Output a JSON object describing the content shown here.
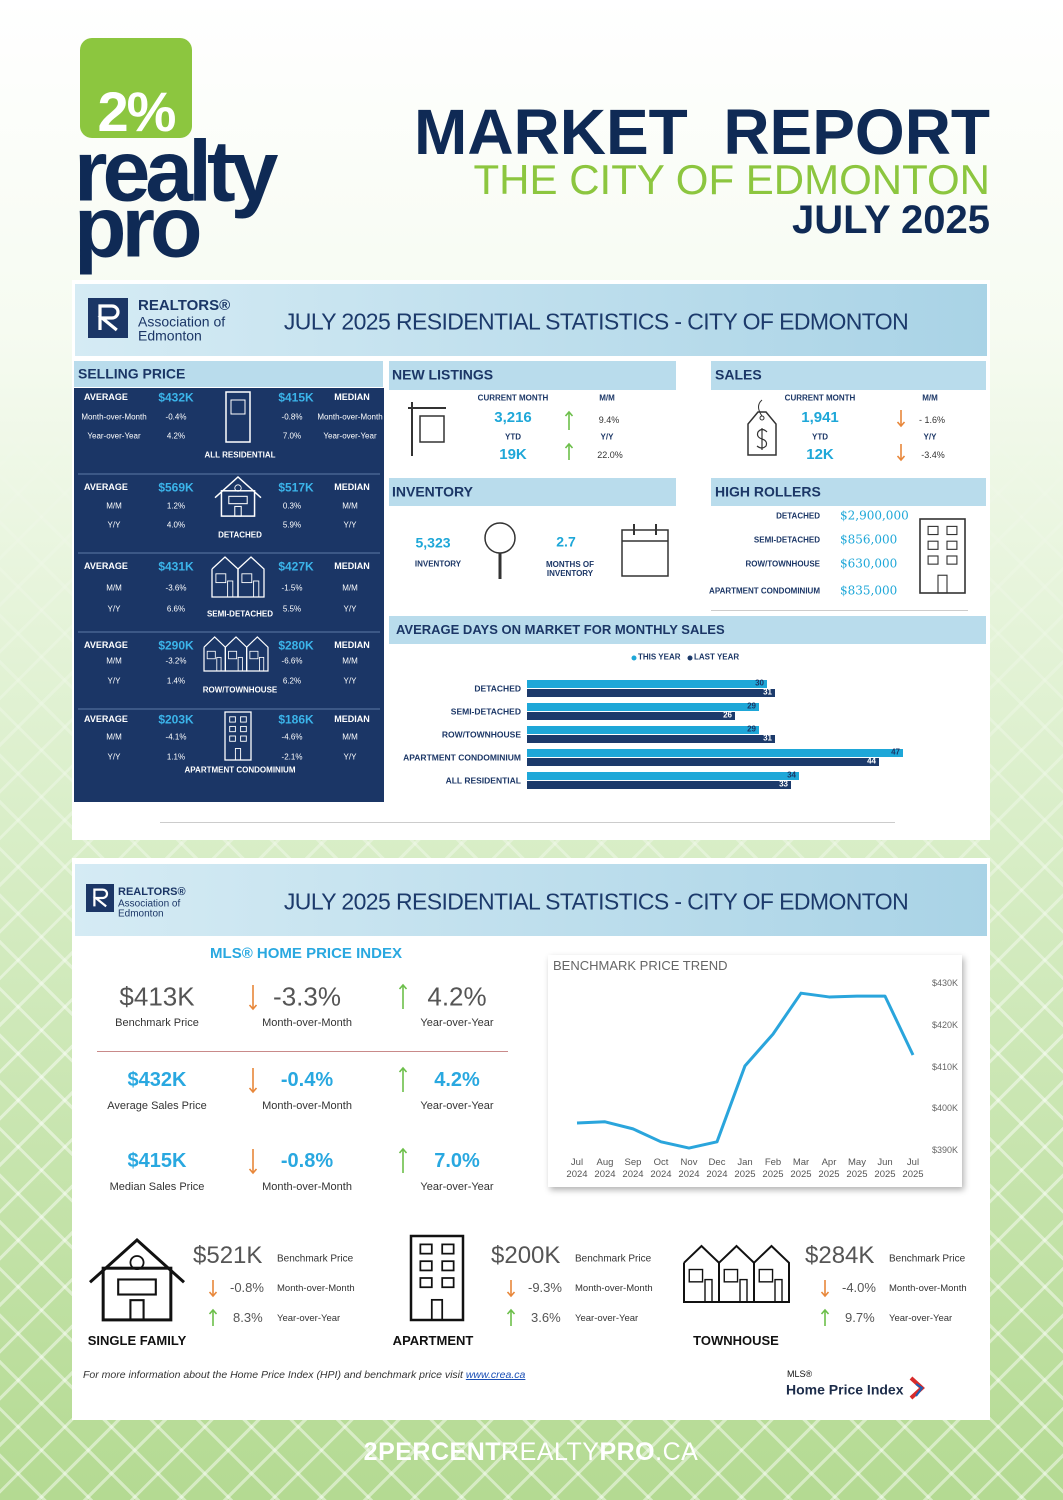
{
  "header": {
    "logo_pct": "2%",
    "logo_word1": "realty",
    "logo_word2": "pro",
    "title": "MARKET  REPORT",
    "subtitle": "THE CITY OF EDMONTON",
    "date": "JULY 2025"
  },
  "panel1": {
    "realtors": [
      "REALTORS®",
      "Association of",
      "Edmonton"
    ],
    "banner_title": "JULY 2025 RESIDENTIAL STATISTICS - CITY OF EDMONTON"
  },
  "selling_price": {
    "title": "SELLING PRICE",
    "groups": [
      {
        "average_label": "AVERAGE",
        "average": "$432K",
        "median": "$415K",
        "median_label": "MEDIAN",
        "rows": [
          {
            "left": "Month-over-Month",
            "average": "-0.4%",
            "median": "-0.8%",
            "right": "Month-over-Month"
          },
          {
            "left": "Year-over-Year",
            "average": "4.2%",
            "median": "7.0%",
            "right": "Year-over-Year"
          }
        ],
        "name": "ALL RESIDENTIAL"
      },
      {
        "average_label": "AVERAGE",
        "average": "$569K",
        "median": "$517K",
        "median_label": "MEDIAN",
        "rows": [
          {
            "left": "M/M",
            "average": "1.2%",
            "median": "0.3%",
            "right": "M/M"
          },
          {
            "left": "Y/Y",
            "average": "4.0%",
            "median": "5.9%",
            "right": "Y/Y"
          }
        ],
        "name": "DETACHED"
      },
      {
        "average_label": "AVERAGE",
        "average": "$431K",
        "median": "$427K",
        "median_label": "MEDIAN",
        "rows": [
          {
            "left": "M/M",
            "average": "-3.6%",
            "median": "-1.5%",
            "right": "M/M"
          },
          {
            "left": "Y/Y",
            "average": "6.6%",
            "median": "5.5%",
            "right": "Y/Y"
          }
        ],
        "name": "SEMI-DETACHED"
      },
      {
        "average_label": "AVERAGE",
        "average": "$290K",
        "median": "$280K",
        "median_label": "MEDIAN",
        "rows": [
          {
            "left": "M/M",
            "average": "-3.2%",
            "median": "-6.6%",
            "right": "M/M"
          },
          {
            "left": "Y/Y",
            "average": "1.4%",
            "median": "6.2%",
            "right": "Y/Y"
          }
        ],
        "name": "ROW/TOWNHOUSE"
      },
      {
        "average_label": "AVERAGE",
        "average": "$203K",
        "median": "$186K",
        "median_label": "MEDIAN",
        "rows": [
          {
            "left": "M/M",
            "average": "-4.1%",
            "median": "-4.6%",
            "right": "M/M"
          },
          {
            "left": "Y/Y",
            "average": "1.1%",
            "median": "-2.1%",
            "right": "Y/Y"
          }
        ],
        "name": "APARTMENT CONDOMINIUM"
      }
    ]
  },
  "new_listings": {
    "title": "NEW  LISTINGS",
    "current_label": "CURRENT MONTH",
    "mm_label": "M/M",
    "current": "3,216",
    "mm": "9.4%",
    "ytd_label": "YTD",
    "yy_label": "Y/Y",
    "ytd": "19K",
    "yy": "22.0%"
  },
  "sales": {
    "title": "SALES",
    "current_label": "CURRENT MONTH",
    "mm_label": "M/M",
    "current": "1,941",
    "mm": "- 1.6%",
    "ytd_label": "YTD",
    "yy_label": "Y/Y",
    "ytd": "12K",
    "yy": "-3.4%"
  },
  "inventory": {
    "title": "INVENTORY",
    "value": "5,323",
    "value_label": "INVENTORY",
    "months": "2.7",
    "months_label": "MONTHS OF INVENTORY"
  },
  "high_rollers": {
    "title": "HIGH ROLLERS",
    "items": [
      {
        "label": "DETACHED",
        "value": "$2,900,000"
      },
      {
        "label": "SEMI-DETACHED",
        "value": "$856,000"
      },
      {
        "label": "ROW/TOWNHOUSE",
        "value": "$630,000"
      },
      {
        "label": "APARTMENT CONDOMINIUM",
        "value": "$835,000"
      }
    ]
  },
  "chart_data": [
    {
      "type": "bar",
      "title": "AVERAGE DAYS ON MARKET FOR MONTHLY SALES",
      "categories": [
        "DETACHED",
        "SEMI-DETACHED",
        "ROW/TOWNHOUSE",
        "APARTMENT CONDOMINIUM",
        "ALL RESIDENTIAL"
      ],
      "series": [
        {
          "name": "THIS YEAR",
          "color": "#1ea7d8",
          "values": [
            30,
            29,
            29,
            47,
            34
          ]
        },
        {
          "name": "LAST YEAR",
          "color": "#1c3a6b",
          "values": [
            31,
            26,
            31,
            44,
            33
          ]
        }
      ],
      "xlim": [
        0,
        50
      ]
    },
    {
      "type": "line",
      "title": "BENCHMARK PRICE TREND",
      "color": "#2aa5dc",
      "categories": [
        "Jul 2024",
        "Aug 2024",
        "Sep 2024",
        "Oct 2024",
        "Nov 2024",
        "Dec 2024",
        "Jan 2025",
        "Feb 2025",
        "Mar 2025",
        "Apr 2025",
        "May 2025",
        "Jun 2025",
        "Jul 2025"
      ],
      "values": [
        396700,
        397000,
        395300,
        392200,
        390700,
        392200,
        410400,
        418000,
        427800,
        426900,
        427100,
        427100,
        413000
      ],
      "ylim": [
        388000,
        432000
      ],
      "yticks": [
        {
          "value": 390000,
          "label": "$390K"
        },
        {
          "value": 400000,
          "label": "$400K"
        },
        {
          "value": 410000,
          "label": "$410K"
        },
        {
          "value": 420000,
          "label": "$420K"
        },
        {
          "value": 430000,
          "label": "$430K"
        }
      ]
    }
  ],
  "panel2": {
    "realtors": [
      "REALTORS®",
      "Association of",
      "Edmonton"
    ],
    "banner_title": "JULY 2025 RESIDENTIAL STATISTICS - CITY OF EDMONTON"
  },
  "hpi": {
    "title": "MLS® HOME PRICE INDEX",
    "rows": [
      {
        "value": "$413K",
        "label": "Benchmark Price",
        "mm": "-3.3%",
        "mm_label": "Month-over-Month",
        "yy": "4.2%",
        "yy_label": "Year-over-Year"
      },
      {
        "value": "$432K",
        "label": "Average Sales Price",
        "mm": "-0.4%",
        "mm_label": "Month-over-Month",
        "yy": "4.2%",
        "yy_label": "Year-over-Year"
      },
      {
        "value": "$415K",
        "label": "Median Sales Price",
        "mm": "-0.8%",
        "mm_label": "Month-over-Month",
        "yy": "7.0%",
        "yy_label": "Year-over-Year"
      }
    ]
  },
  "property_types": [
    {
      "name": "SINGLE FAMILY",
      "price": "$521K",
      "price_label": "Benchmark Price",
      "mm": "-0.8%",
      "mm_label": "Month-over-Month",
      "yy": "8.3%",
      "yy_label": "Year-over-Year"
    },
    {
      "name": "APARTMENT",
      "price": "$200K",
      "price_label": "Benchmark Price",
      "mm": "-9.3%",
      "mm_label": "Month-over-Month",
      "yy": "3.6%",
      "yy_label": "Year-over-Year"
    },
    {
      "name": "TOWNHOUSE",
      "price": "$284K",
      "price_label": "Benchmark Price",
      "mm": "-4.0%",
      "mm_label": "Month-over-Month",
      "yy": "9.7%",
      "yy_label": "Year-over-Year"
    }
  ],
  "footer": {
    "note": "For more information about the Home Price Index (HPI) and benchmark price visit",
    "link": "www.crea.ca",
    "mls_mark": "MLS®",
    "mls_name": "Home Price Index",
    "website": [
      "2PERCENT",
      "REALTY",
      "PRO",
      ".CA"
    ]
  }
}
